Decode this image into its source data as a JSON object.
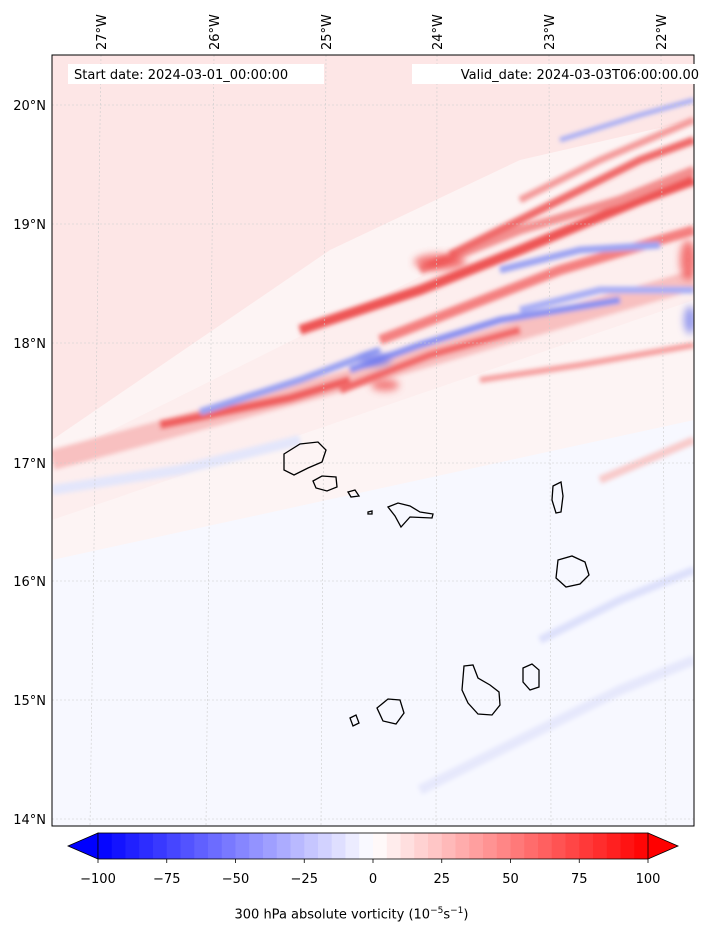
{
  "map": {
    "start_label": "Start date: 2024-03-01_00:00:00",
    "valid_label": "Valid_date: 2024-03-03T06:00:00.00",
    "lon_ticks": [
      "27°W",
      "26°W",
      "25°W",
      "24°W",
      "23°W",
      "22°W"
    ],
    "lat_ticks": [
      "20°N",
      "19°N",
      "18°N",
      "17°N",
      "16°N",
      "15°N",
      "14°N"
    ],
    "islands": [
      "Santo Antão",
      "São Vicente",
      "Santa Luzia",
      "Branco",
      "São Nicolau",
      "Sal",
      "Boa Vista",
      "Maio",
      "Santiago",
      "Fogo",
      "Brava"
    ]
  },
  "colorbar": {
    "tick_labels": [
      "−100",
      "−75",
      "−50",
      "−25",
      "0",
      "25",
      "50",
      "75",
      "100"
    ],
    "title_main": "300 hPa absolute vorticity (10",
    "title_exp1": "−5",
    "title_mid": "s",
    "title_exp2": "−1",
    "title_end": ")",
    "min": -100,
    "max": 100,
    "colormap": "bwr",
    "colors": {
      "negative": "#0000ff",
      "neutral": "#ffffff",
      "positive": "#ff0000"
    }
  }
}
